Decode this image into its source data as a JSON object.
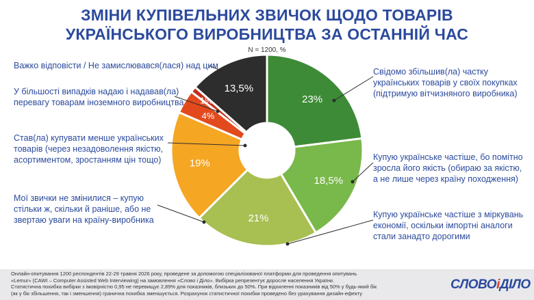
{
  "title": {
    "line1": "Зміни купівельних звичок щодо товарів",
    "line2": "українського виробництва за останній час"
  },
  "subtitle": "N = 1200, %",
  "chart_data": {
    "type": "pie",
    "donut": true,
    "slices": [
      {
        "value": 23,
        "label": "23%",
        "color": "#3d8b36",
        "text": [
          "Свідомо збільшив(ла) частку",
          "українських товарів у своїх покупках",
          "(підтримую вітчизняного виробника)"
        ]
      },
      {
        "value": 18.5,
        "label": "18,5%",
        "color": "#79b84a",
        "text": [
          "Купую українське частіше, бо помітно",
          "зросла його якість (обираю за якістю,",
          "а не лише через країну походження)"
        ]
      },
      {
        "value": 21,
        "label": "21%",
        "color": "#a8bf52",
        "text": [
          "Купую українське частіше з міркувань",
          "економії, оскільки імпортні аналоги",
          "стали занадто дорогими"
        ]
      },
      {
        "value": 19,
        "label": "19%",
        "color": "#f5a623",
        "text": [
          "Мої звички не змінилися – купую",
          "стільки ж, скільки й раніше, або не",
          "звертаю уваги на країну-виробника"
        ]
      },
      {
        "value": 4,
        "label": "4%",
        "color": "#e24a1d",
        "text": [
          "Став(ла) купувати менше українських",
          "товарів (через незадоволення якістю,",
          "асортиментом, зростанням цін тощо)"
        ]
      },
      {
        "value": 1,
        "label": "1%",
        "color": "#c0311c",
        "text": [
          "У більшості випадків надаю і надавав(ла)",
          "перевагу товарам іноземного виробництва"
        ]
      },
      {
        "value": 13.5,
        "label": "13,5%",
        "color": "#2d2d2d",
        "text": [
          "Важко відповісти / Не замислювався(лася) над цим"
        ]
      }
    ]
  },
  "footer": {
    "lines": [
      "Онлайн-опитування 1200 респондентів 22-29 травня 2026 року, проведене за допомогою спеціалізованої платформи для проведення опитувань",
      "«Lemur» (CAWI – Computer Assisted Web Interviewing) на замовлення «Слово і Діло». Вибірка репрезентує доросле населення України.",
      "Статистична похибка вибірки з імовірністю 0,95 не перевищує 2,89% для показників, близьких до 50%. При відхиленні показників від 50% у будь-який бік",
      "(як у бік збільшення, так і зменшення) гранична похибка зменшується. Розрахунок статистичної похибки проведено без урахування дизайн-ефекту"
    ]
  },
  "logo": {
    "part1": "СЛОВО",
    "amp": "і",
    "part2": "ДІЛО"
  }
}
